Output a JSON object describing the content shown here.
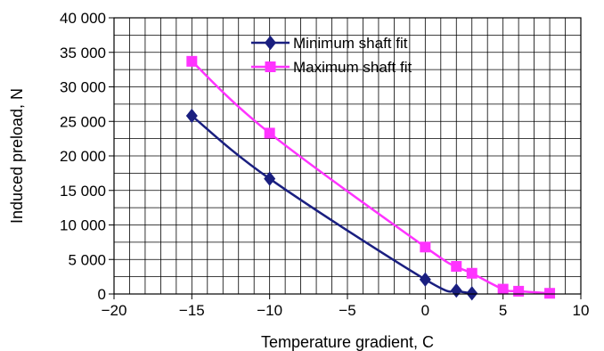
{
  "chart_data": {
    "type": "line",
    "title": "",
    "xlabel": "Temperature gradient, C",
    "ylabel": "Induced preload, N",
    "xlim": [
      -20,
      10
    ],
    "ylim": [
      0,
      40000
    ],
    "x_ticks": [
      -20,
      -15,
      -10,
      -5,
      0,
      5,
      10
    ],
    "x_tick_labels": [
      "−20",
      "−15",
      "−10",
      "−5",
      "0",
      "5",
      "10"
    ],
    "y_ticks": [
      0,
      5000,
      10000,
      15000,
      20000,
      25000,
      30000,
      35000,
      40000
    ],
    "y_tick_labels": [
      "0",
      "5 000",
      "10 000",
      "15 000",
      "20 000",
      "25 000",
      "30 000",
      "35 000",
      "40 000"
    ],
    "x_minor_step": 1,
    "y_minor_step": 2500,
    "grid": true,
    "legend_position": "top-center",
    "series": [
      {
        "name": "Minimum shaft fit",
        "color": "#1a1f80",
        "marker": "diamond",
        "x": [
          -15,
          -10,
          0,
          2,
          3
        ],
        "y": [
          25800,
          16700,
          2100,
          500,
          100
        ]
      },
      {
        "name": "Maximum shaft fit",
        "color": "#ff33ff",
        "marker": "square",
        "x": [
          -15,
          -10,
          0,
          2,
          3,
          5,
          6,
          8
        ],
        "y": [
          33700,
          23300,
          6800,
          4000,
          3000,
          700,
          400,
          100
        ]
      }
    ]
  }
}
